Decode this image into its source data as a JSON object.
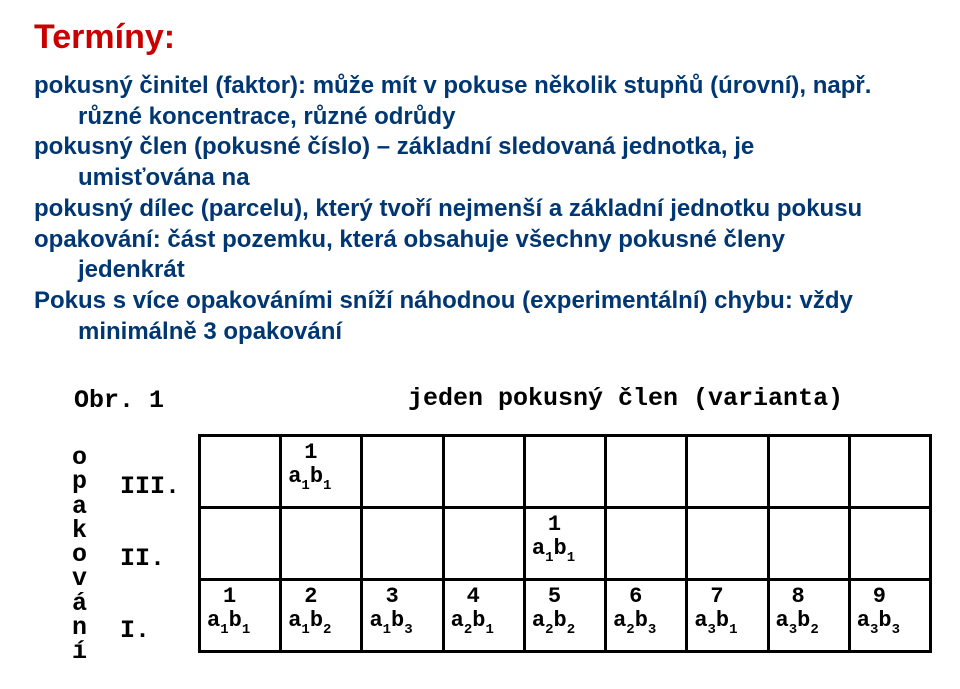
{
  "title": "Termíny:",
  "lines": {
    "cinitel1": "pokusný činitel (faktor): může mít v pokuse několik stupňů (úrovní), např.",
    "cinitel2": "různé koncentrace, různé odrůdy",
    "clen": "pokusný člen (pokusné číslo) – základní sledovaná jednotka,  je",
    "clen_sub": "umisťována na",
    "dilec": "pokusný dílec (parcelu), který tvoří nejmenší a základní jednotku pokusu",
    "opak": "opakování: část pozemku, která obsahuje všechny pokusné členy",
    "opak_sub": "jedenkrát",
    "pokus1": "Pokus s více opakováními sníží náhodnou (experimentální) chybu: vždy",
    "pokus_sub": "minimálně 3 opakování"
  },
  "figure": {
    "obr_label": "Obr. 1",
    "varianta_label": "jeden pokusný člen (varianta)",
    "vertical_word": "opakování",
    "romans": [
      "III.",
      "II.",
      "I."
    ],
    "cells": [
      {
        "row": 0,
        "col": 1,
        "num": "1",
        "a": "1",
        "b": "1"
      },
      {
        "row": 1,
        "col": 4,
        "num": "1",
        "a": "1",
        "b": "1"
      },
      {
        "row": 2,
        "col": 0,
        "num": "1",
        "a": "1",
        "b": "1"
      },
      {
        "row": 2,
        "col": 1,
        "num": "2",
        "a": "1",
        "b": "2"
      },
      {
        "row": 2,
        "col": 2,
        "num": "3",
        "a": "1",
        "b": "3"
      },
      {
        "row": 2,
        "col": 3,
        "num": "4",
        "a": "2",
        "b": "1"
      },
      {
        "row": 2,
        "col": 4,
        "num": "5",
        "a": "2",
        "b": "2"
      },
      {
        "row": 2,
        "col": 5,
        "num": "6",
        "a": "2",
        "b": "3"
      },
      {
        "row": 2,
        "col": 6,
        "num": "7",
        "a": "3",
        "b": "1"
      },
      {
        "row": 2,
        "col": 7,
        "num": "8",
        "a": "3",
        "b": "2"
      },
      {
        "row": 2,
        "col": 8,
        "num": "9",
        "a": "3",
        "b": "3"
      }
    ],
    "rows": 3,
    "cols": 9
  }
}
